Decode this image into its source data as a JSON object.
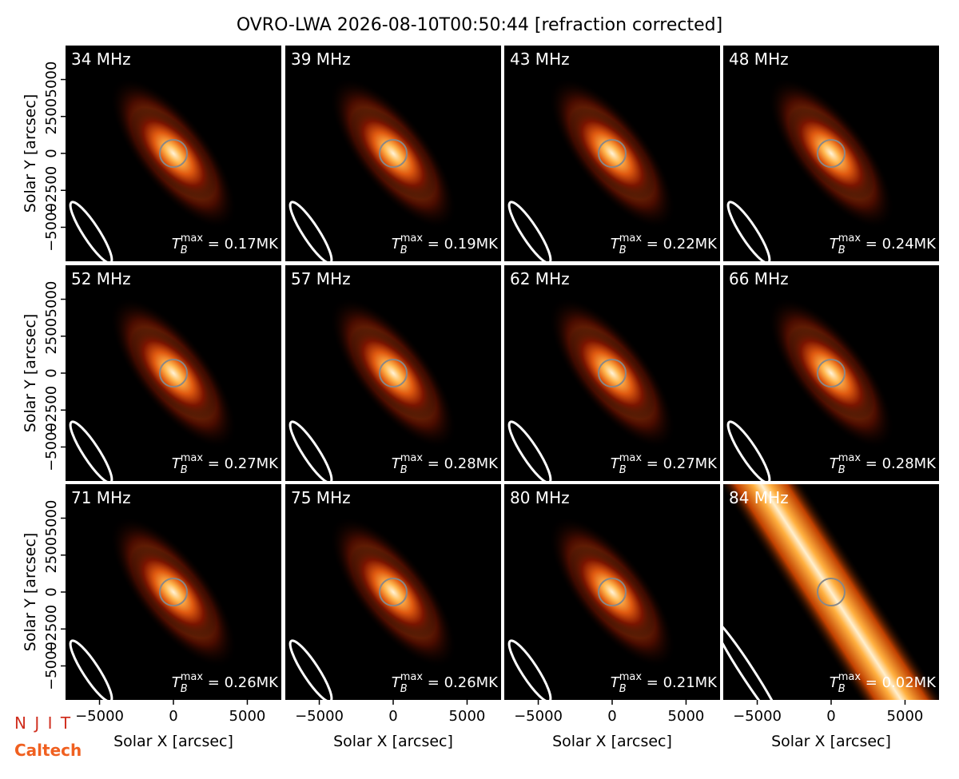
{
  "title": "OVRO-LWA 2026-08-10T00:50:44 [refraction corrected]",
  "axes": {
    "xlabel": "Solar X [arcsec]",
    "ylabel": "Solar Y [arcsec]",
    "xlim": [
      -7300,
      7300
    ],
    "ylim": [
      -7300,
      7300
    ],
    "xticks": [
      {
        "value": -5000,
        "label": "−5000"
      },
      0,
      5000
    ],
    "yticks": [
      {
        "value": -5000,
        "label": "−5000"
      },
      {
        "value": -2500,
        "label": "−2500"
      },
      0,
      2500,
      5000
    ]
  },
  "tmax_symbol": {
    "base": "T",
    "sub": "B",
    "sup": "max",
    "eq": " = "
  },
  "logos": [
    "N J I T",
    "Caltech"
  ],
  "chart_data": [
    {
      "type": "image",
      "title": "34 MHz",
      "annotation": "0.17MK"
    },
    {
      "type": "image",
      "title": "39 MHz",
      "annotation": "0.19MK"
    },
    {
      "type": "image",
      "title": "43 MHz",
      "annotation": "0.22MK"
    },
    {
      "type": "image",
      "title": "48 MHz",
      "annotation": "0.24MK"
    },
    {
      "type": "image",
      "title": "52 MHz",
      "annotation": "0.27MK"
    },
    {
      "type": "image",
      "title": "57 MHz",
      "annotation": "0.28MK"
    },
    {
      "type": "image",
      "title": "62 MHz",
      "annotation": "0.27MK"
    },
    {
      "type": "image",
      "title": "66 MHz",
      "annotation": "0.28MK"
    },
    {
      "type": "image",
      "title": "71 MHz",
      "annotation": "0.26MK"
    },
    {
      "type": "image",
      "title": "75 MHz",
      "annotation": "0.26MK"
    },
    {
      "type": "image",
      "title": "80 MHz",
      "annotation": "0.21MK"
    },
    {
      "type": "image",
      "title": "84 MHz",
      "annotation": "0.02MK"
    }
  ]
}
